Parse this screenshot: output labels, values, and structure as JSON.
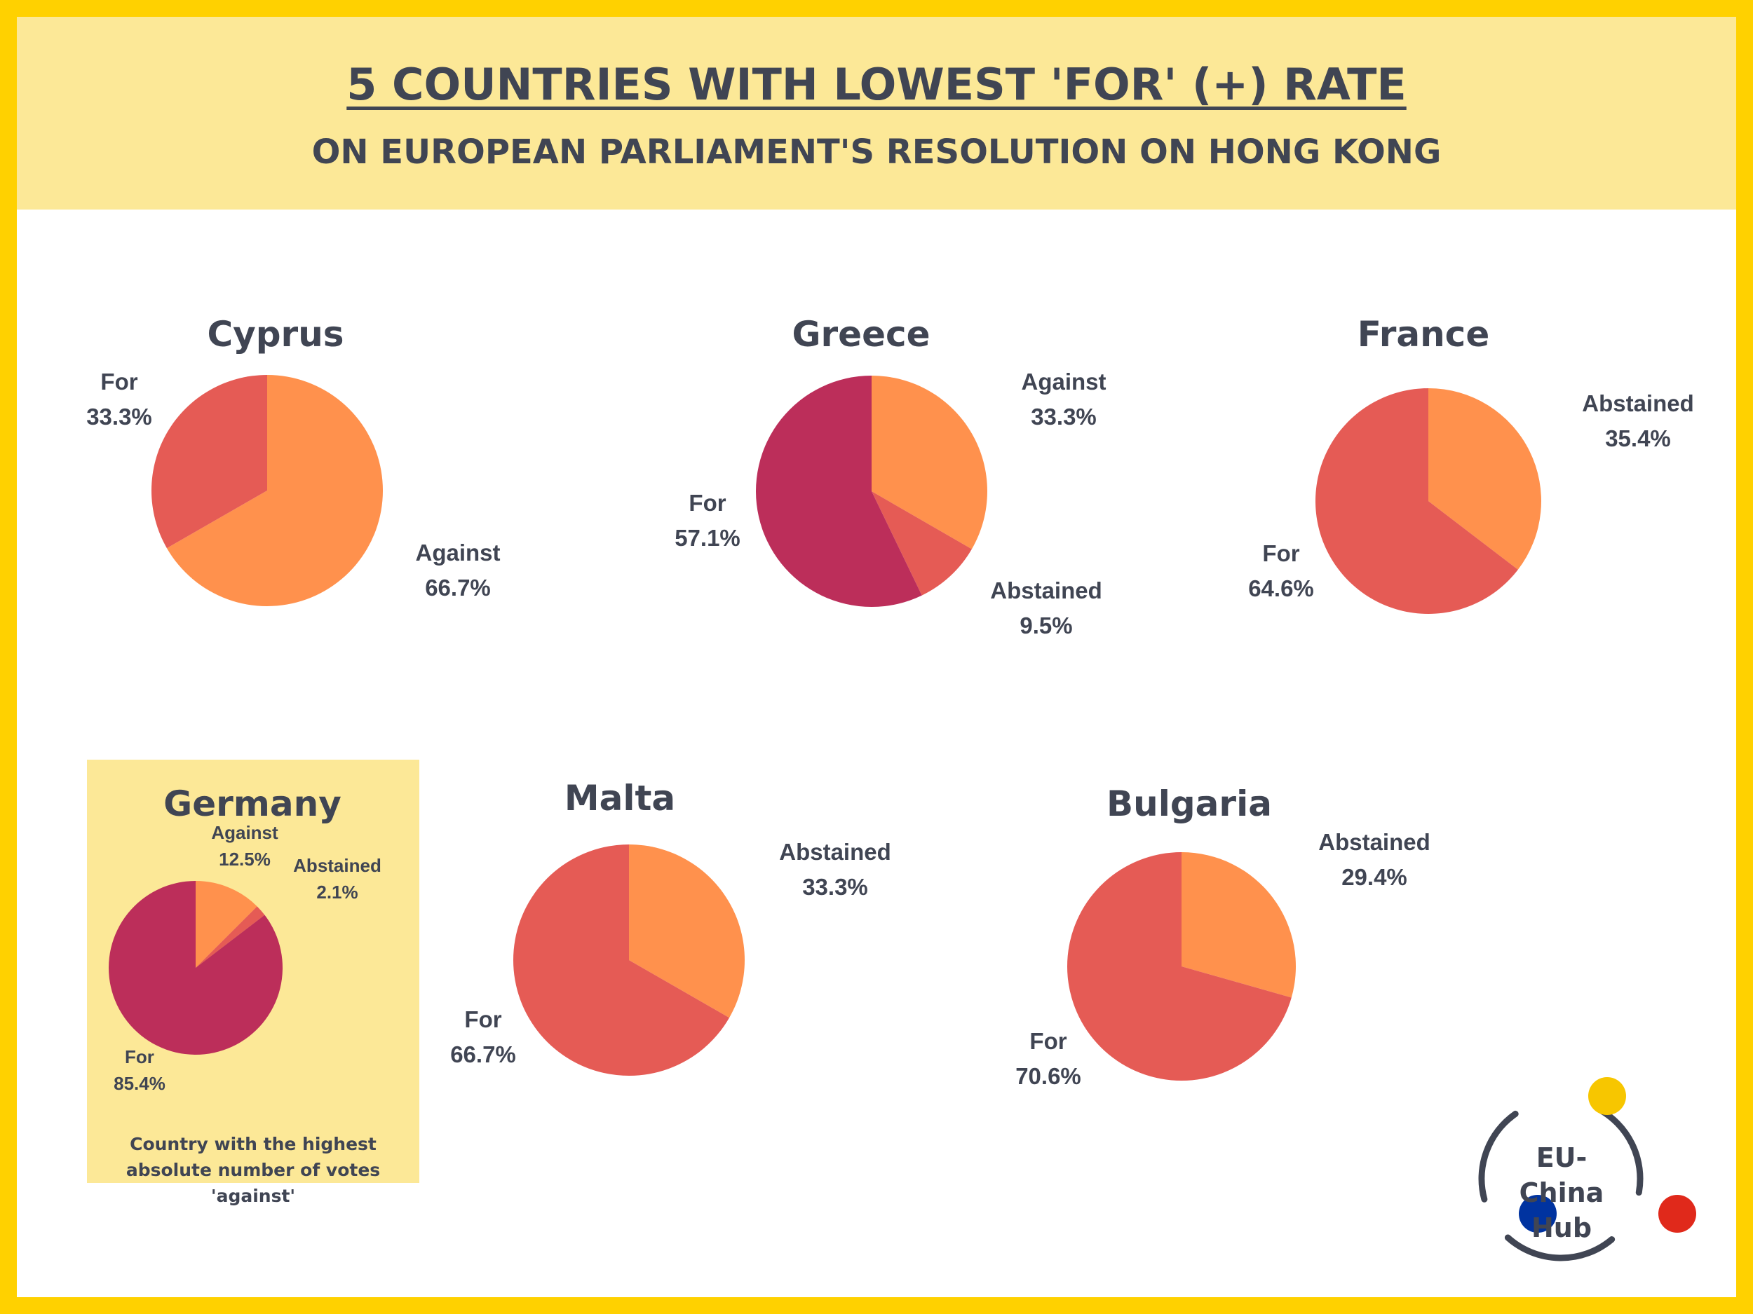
{
  "header": {
    "title": "5 COUNTRIES WITH LOWEST 'FOR' (+) RATE",
    "subtitle": "ON EUROPEAN PARLIAMENT'S RESOLUTION ON HONG KONG"
  },
  "colors": {
    "border": "#FFD100",
    "highlight": "#FCE897",
    "text": "#404553",
    "Against": "#FF914D",
    "Abstained": "#E55B55",
    "For": "#BC2E5A",
    "logo_yellow": "#F7C600",
    "logo_red": "#E0291B",
    "logo_blue": "#0033A0"
  },
  "chart_data": [
    {
      "type": "pie",
      "title": "Cyprus",
      "slices": [
        {
          "name": "Against",
          "value": 66.7,
          "label": "66.7%",
          "color": "#FF914D"
        },
        {
          "name": "For",
          "value": 33.3,
          "label": "33.3%",
          "color": "#E55B55"
        }
      ]
    },
    {
      "type": "pie",
      "title": "Greece",
      "slices": [
        {
          "name": "Against",
          "value": 33.3,
          "label": "33.3%",
          "color": "#FF914D"
        },
        {
          "name": "Abstained",
          "value": 9.5,
          "label": "9.5%",
          "color": "#E55B55"
        },
        {
          "name": "For",
          "value": 57.1,
          "label": "57.1%",
          "color": "#BC2E5A"
        }
      ]
    },
    {
      "type": "pie",
      "title": "France",
      "slices": [
        {
          "name": "Abstained",
          "value": 35.4,
          "label": "35.4%",
          "color": "#FF914D"
        },
        {
          "name": "For",
          "value": 64.6,
          "label": "64.6%",
          "color": "#E55B55"
        }
      ]
    },
    {
      "type": "pie",
      "title": "Germany",
      "slices": [
        {
          "name": "Against",
          "value": 12.5,
          "label": "12.5%",
          "color": "#FF914D"
        },
        {
          "name": "Abstained",
          "value": 2.1,
          "label": "2.1%",
          "color": "#E55B55"
        },
        {
          "name": "For",
          "value": 85.4,
          "label": "85.4%",
          "color": "#BC2E5A"
        }
      ],
      "note": "Country with the highest absolute number of votes 'against'"
    },
    {
      "type": "pie",
      "title": "Malta",
      "slices": [
        {
          "name": "Abstained",
          "value": 33.3,
          "label": "33.3%",
          "color": "#FF914D"
        },
        {
          "name": "For",
          "value": 66.7,
          "label": "66.7%",
          "color": "#E55B55"
        }
      ]
    },
    {
      "type": "pie",
      "title": "Bulgaria",
      "slices": [
        {
          "name": "Abstained",
          "value": 29.4,
          "label": "29.4%",
          "color": "#FF914D"
        },
        {
          "name": "For",
          "value": 70.6,
          "label": "70.6%",
          "color": "#E55B55"
        }
      ]
    }
  ],
  "logo": {
    "line1": "EU-China",
    "line2": "Hub"
  }
}
